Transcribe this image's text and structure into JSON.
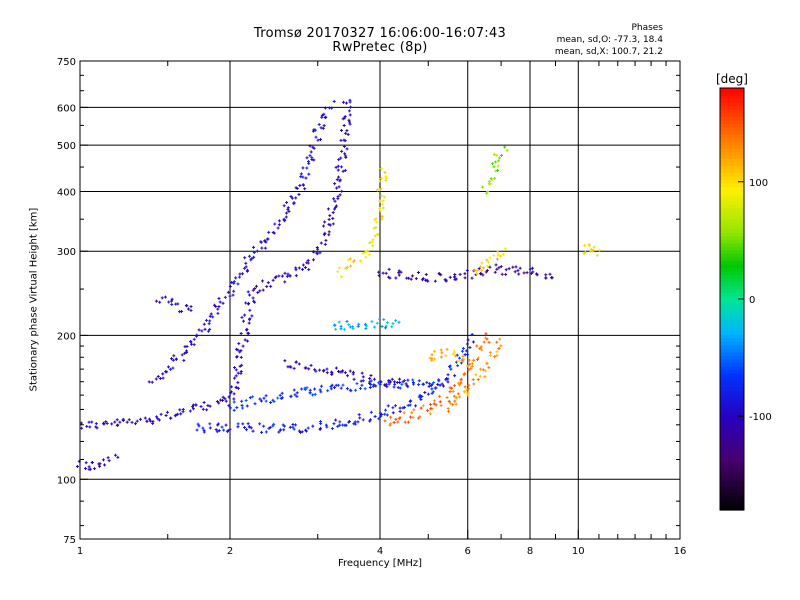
{
  "title": {
    "line1": "Tromsø 20170327 16:06:00-16:07:43",
    "line2": "RwPretec (8p)"
  },
  "phases_box": {
    "heading": "Phases",
    "line_o": "mean, sd,O: -77.3, 18.4",
    "line_x": "mean, sd,X: 100.7, 21.2"
  },
  "colorbar": {
    "unit": "[deg]",
    "ticks": [
      "100",
      "0",
      "-100"
    ],
    "tick_values": [
      100,
      0,
      -100
    ],
    "range": [
      -180,
      180
    ]
  },
  "chart_data": {
    "type": "scatter",
    "xlabel": "Frequency [MHz]",
    "ylabel": "Stationary phase Virtual Height [km]",
    "xscale": "log",
    "yscale": "log",
    "xlim": [
      1,
      16
    ],
    "ylim": [
      75,
      750
    ],
    "x_ticks": [
      1,
      2,
      4,
      6,
      8,
      10,
      16
    ],
    "x_tick_labels": [
      "1",
      "2",
      "4",
      "6",
      "8",
      "10",
      "16"
    ],
    "y_ticks": [
      75,
      100,
      200,
      300,
      400,
      500,
      600,
      750
    ],
    "y_tick_labels": [
      "75",
      "100",
      "200",
      "300",
      "400",
      "500",
      "600",
      "750"
    ],
    "grid": true,
    "color_by": "phase [deg]",
    "traces": [
      {
        "points": [
          [
            1.0,
            130
          ],
          [
            1.1,
            130
          ],
          [
            1.3,
            132
          ],
          [
            1.5,
            136
          ],
          [
            1.7,
            140
          ],
          [
            1.9,
            145
          ],
          [
            2.0,
            148
          ],
          [
            2.05,
            160
          ],
          [
            2.1,
            185
          ],
          [
            2.15,
            210
          ],
          [
            2.2,
            240
          ],
          [
            2.35,
            255
          ],
          [
            2.6,
            265
          ],
          [
            2.9,
            285
          ],
          [
            3.1,
            320
          ],
          [
            3.25,
            380
          ],
          [
            3.35,
            460
          ],
          [
            3.42,
            560
          ],
          [
            3.45,
            630
          ]
        ],
        "phase": -105
      },
      {
        "points": [
          [
            1.0,
            107
          ],
          [
            1.05,
            106
          ],
          [
            1.12,
            108
          ],
          [
            1.18,
            112
          ]
        ],
        "phase": -110
      },
      {
        "points": [
          [
            1.4,
            160
          ],
          [
            1.6,
            180
          ],
          [
            1.8,
            210
          ],
          [
            2.0,
            250
          ],
          [
            2.2,
            290
          ],
          [
            2.5,
            340
          ],
          [
            2.8,
            420
          ],
          [
            3.0,
            530
          ],
          [
            3.2,
            610
          ]
        ],
        "phase": -95
      },
      {
        "points": [
          [
            1.7,
            128
          ],
          [
            2.0,
            128
          ],
          [
            2.4,
            128
          ],
          [
            2.8,
            128
          ],
          [
            3.2,
            130
          ],
          [
            3.6,
            133
          ],
          [
            4.0,
            137
          ],
          [
            4.5,
            142
          ],
          [
            5.0,
            150
          ],
          [
            5.5,
            165
          ],
          [
            5.9,
            185
          ],
          [
            6.1,
            200
          ]
        ],
        "phase": -80
      },
      {
        "points": [
          [
            2.0,
            142
          ],
          [
            2.6,
            150
          ],
          [
            3.2,
            155
          ],
          [
            3.8,
            158
          ],
          [
            4.5,
            158
          ],
          [
            5.0,
            158
          ],
          [
            5.4,
            160
          ]
        ],
        "phase": -70
      },
      {
        "points": [
          [
            2.6,
            175
          ],
          [
            3.0,
            170
          ],
          [
            3.5,
            165
          ],
          [
            4.0,
            160
          ],
          [
            4.6,
            158
          ]
        ],
        "phase": -105
      },
      {
        "points": [
          [
            4.1,
            132
          ],
          [
            4.6,
            135
          ],
          [
            5.0,
            140
          ],
          [
            5.5,
            150
          ],
          [
            5.9,
            165
          ],
          [
            6.3,
            185
          ],
          [
            6.6,
            200
          ]
        ],
        "phase": 140
      },
      {
        "points": [
          [
            5.4,
            140
          ],
          [
            5.8,
            150
          ],
          [
            6.2,
            160
          ],
          [
            6.6,
            175
          ],
          [
            7.0,
            195
          ]
        ],
        "phase": 125
      },
      {
        "points": [
          [
            3.3,
            270
          ],
          [
            3.5,
            285
          ],
          [
            3.75,
            300
          ],
          [
            3.95,
            330
          ],
          [
            4.0,
            380
          ],
          [
            4.05,
            450
          ]
        ],
        "phase": 95
      },
      {
        "points": [
          [
            3.2,
            210
          ],
          [
            3.6,
            210
          ],
          [
            4.0,
            212
          ],
          [
            4.4,
            210
          ]
        ],
        "phase": -30
      },
      {
        "points": [
          [
            4.0,
            270
          ],
          [
            4.5,
            268
          ],
          [
            5.0,
            265
          ],
          [
            5.6,
            265
          ],
          [
            6.2,
            270
          ],
          [
            6.8,
            275
          ],
          [
            7.5,
            272
          ],
          [
            8.3,
            270
          ],
          [
            9.0,
            268
          ]
        ],
        "phase": -115
      },
      {
        "points": [
          [
            6.2,
            270
          ],
          [
            6.5,
            280
          ],
          [
            6.8,
            290
          ],
          [
            7.1,
            300
          ]
        ],
        "phase": 105
      },
      {
        "points": [
          [
            6.5,
            400
          ],
          [
            6.7,
            430
          ],
          [
            6.9,
            470
          ],
          [
            7.1,
            500
          ]
        ],
        "phase": 55
      },
      {
        "points": [
          [
            10.3,
            305
          ],
          [
            10.6,
            300
          ],
          [
            11.0,
            295
          ]
        ],
        "phase": 95
      },
      {
        "points": [
          [
            1.45,
            240
          ],
          [
            1.55,
            230
          ],
          [
            1.7,
            225
          ]
        ],
        "phase": -100
      },
      {
        "points": [
          [
            5.0,
            180
          ],
          [
            5.5,
            185
          ],
          [
            6.0,
            175
          ]
        ],
        "phase": 110
      }
    ]
  }
}
